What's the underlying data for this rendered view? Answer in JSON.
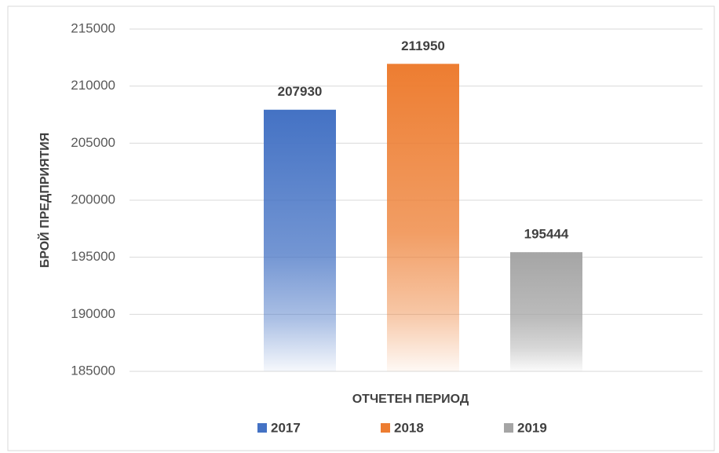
{
  "chart_data": {
    "type": "bar",
    "y_axis_label": "БРОЙ ПРЕДПРИЯТИЯ",
    "x_axis_label": "ОТЧЕТЕН ПЕРИОД",
    "categories": [
      null
    ],
    "series": [
      {
        "name": "2017",
        "color": "#4472c4",
        "values": [
          207930
        ]
      },
      {
        "name": "2018",
        "color": "#ed7d31",
        "values": [
          211950
        ]
      },
      {
        "name": "2019",
        "color": "#a5a5a5",
        "values": [
          195444
        ]
      }
    ],
    "ylim": [
      185000,
      215000
    ],
    "yticks": [
      185000,
      190000,
      195000,
      200000,
      205000,
      210000,
      215000
    ],
    "grid": true,
    "legend": "bottom"
  }
}
